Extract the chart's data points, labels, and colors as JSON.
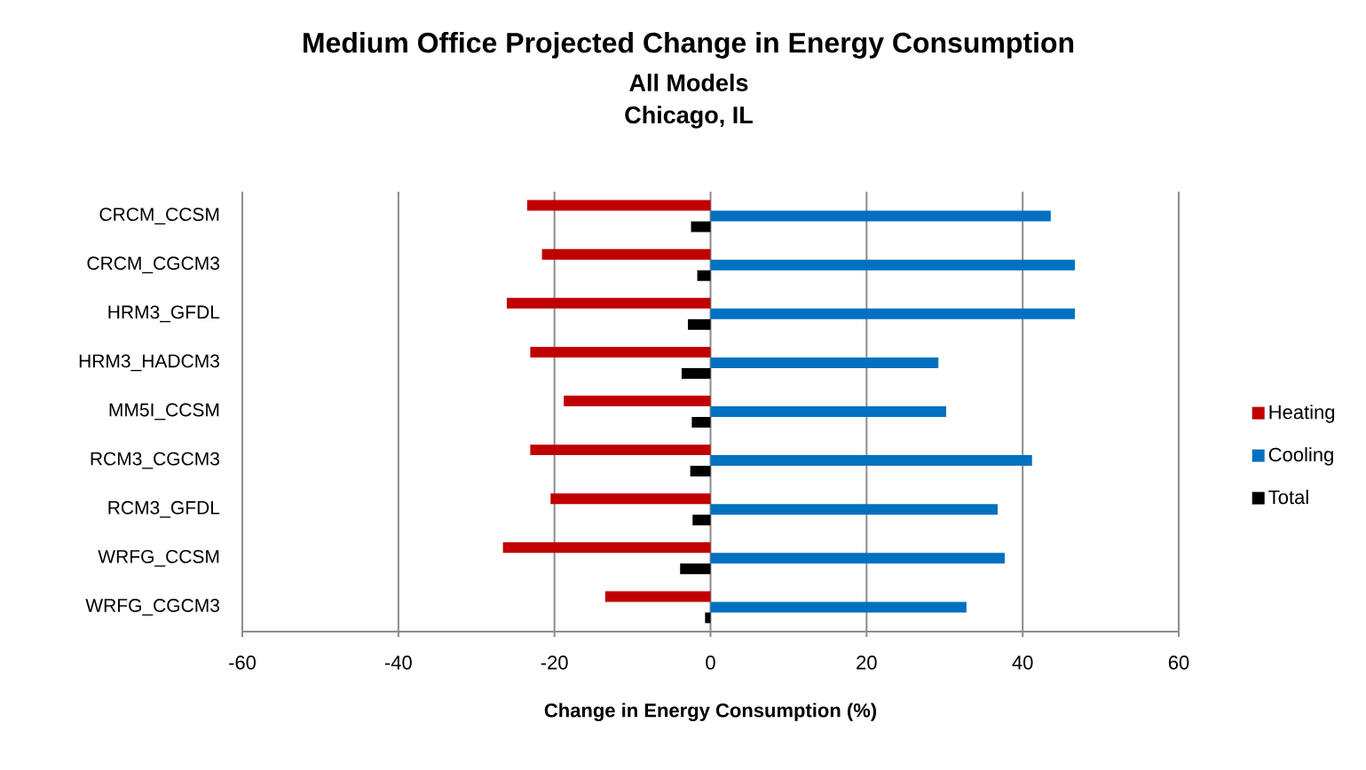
{
  "chart_data": {
    "type": "bar",
    "orientation": "horizontal",
    "title": "Medium Office Projected Change in Energy Consumption",
    "subtitle": "All Models",
    "annotations": [
      "Chicago, IL"
    ],
    "xlabel": "Change in Energy Consumption (%)",
    "categories": [
      "CRCM_CCSM",
      "CRCM_CGCM3",
      "HRM3_GFDL",
      "HRM3_HADCM3",
      "MM5I_CCSM",
      "RCM3_CGCM3",
      "RCM3_GFDL",
      "WRFG_CCSM",
      "WRFG_CGCM3"
    ],
    "series": [
      {
        "name": "Heating",
        "color": "#c00000",
        "values": [
          -23.5,
          -21.6,
          -26.1,
          -23.1,
          -18.8,
          -23.1,
          -20.5,
          -26.6,
          -13.5
        ]
      },
      {
        "name": "Cooling",
        "color": "#0070c0",
        "values": [
          43.6,
          46.7,
          46.7,
          29.2,
          30.2,
          41.2,
          36.8,
          37.7,
          32.8
        ]
      },
      {
        "name": "Total",
        "color": "#000000",
        "values": [
          -2.5,
          -1.7,
          -2.9,
          -3.7,
          -2.4,
          -2.6,
          -2.3,
          -3.9,
          -0.7
        ]
      }
    ],
    "xlim": [
      -60,
      60
    ],
    "xticks": [
      -60,
      -40,
      -20,
      0,
      20,
      40,
      60
    ],
    "grid": "x",
    "legend": "right"
  }
}
